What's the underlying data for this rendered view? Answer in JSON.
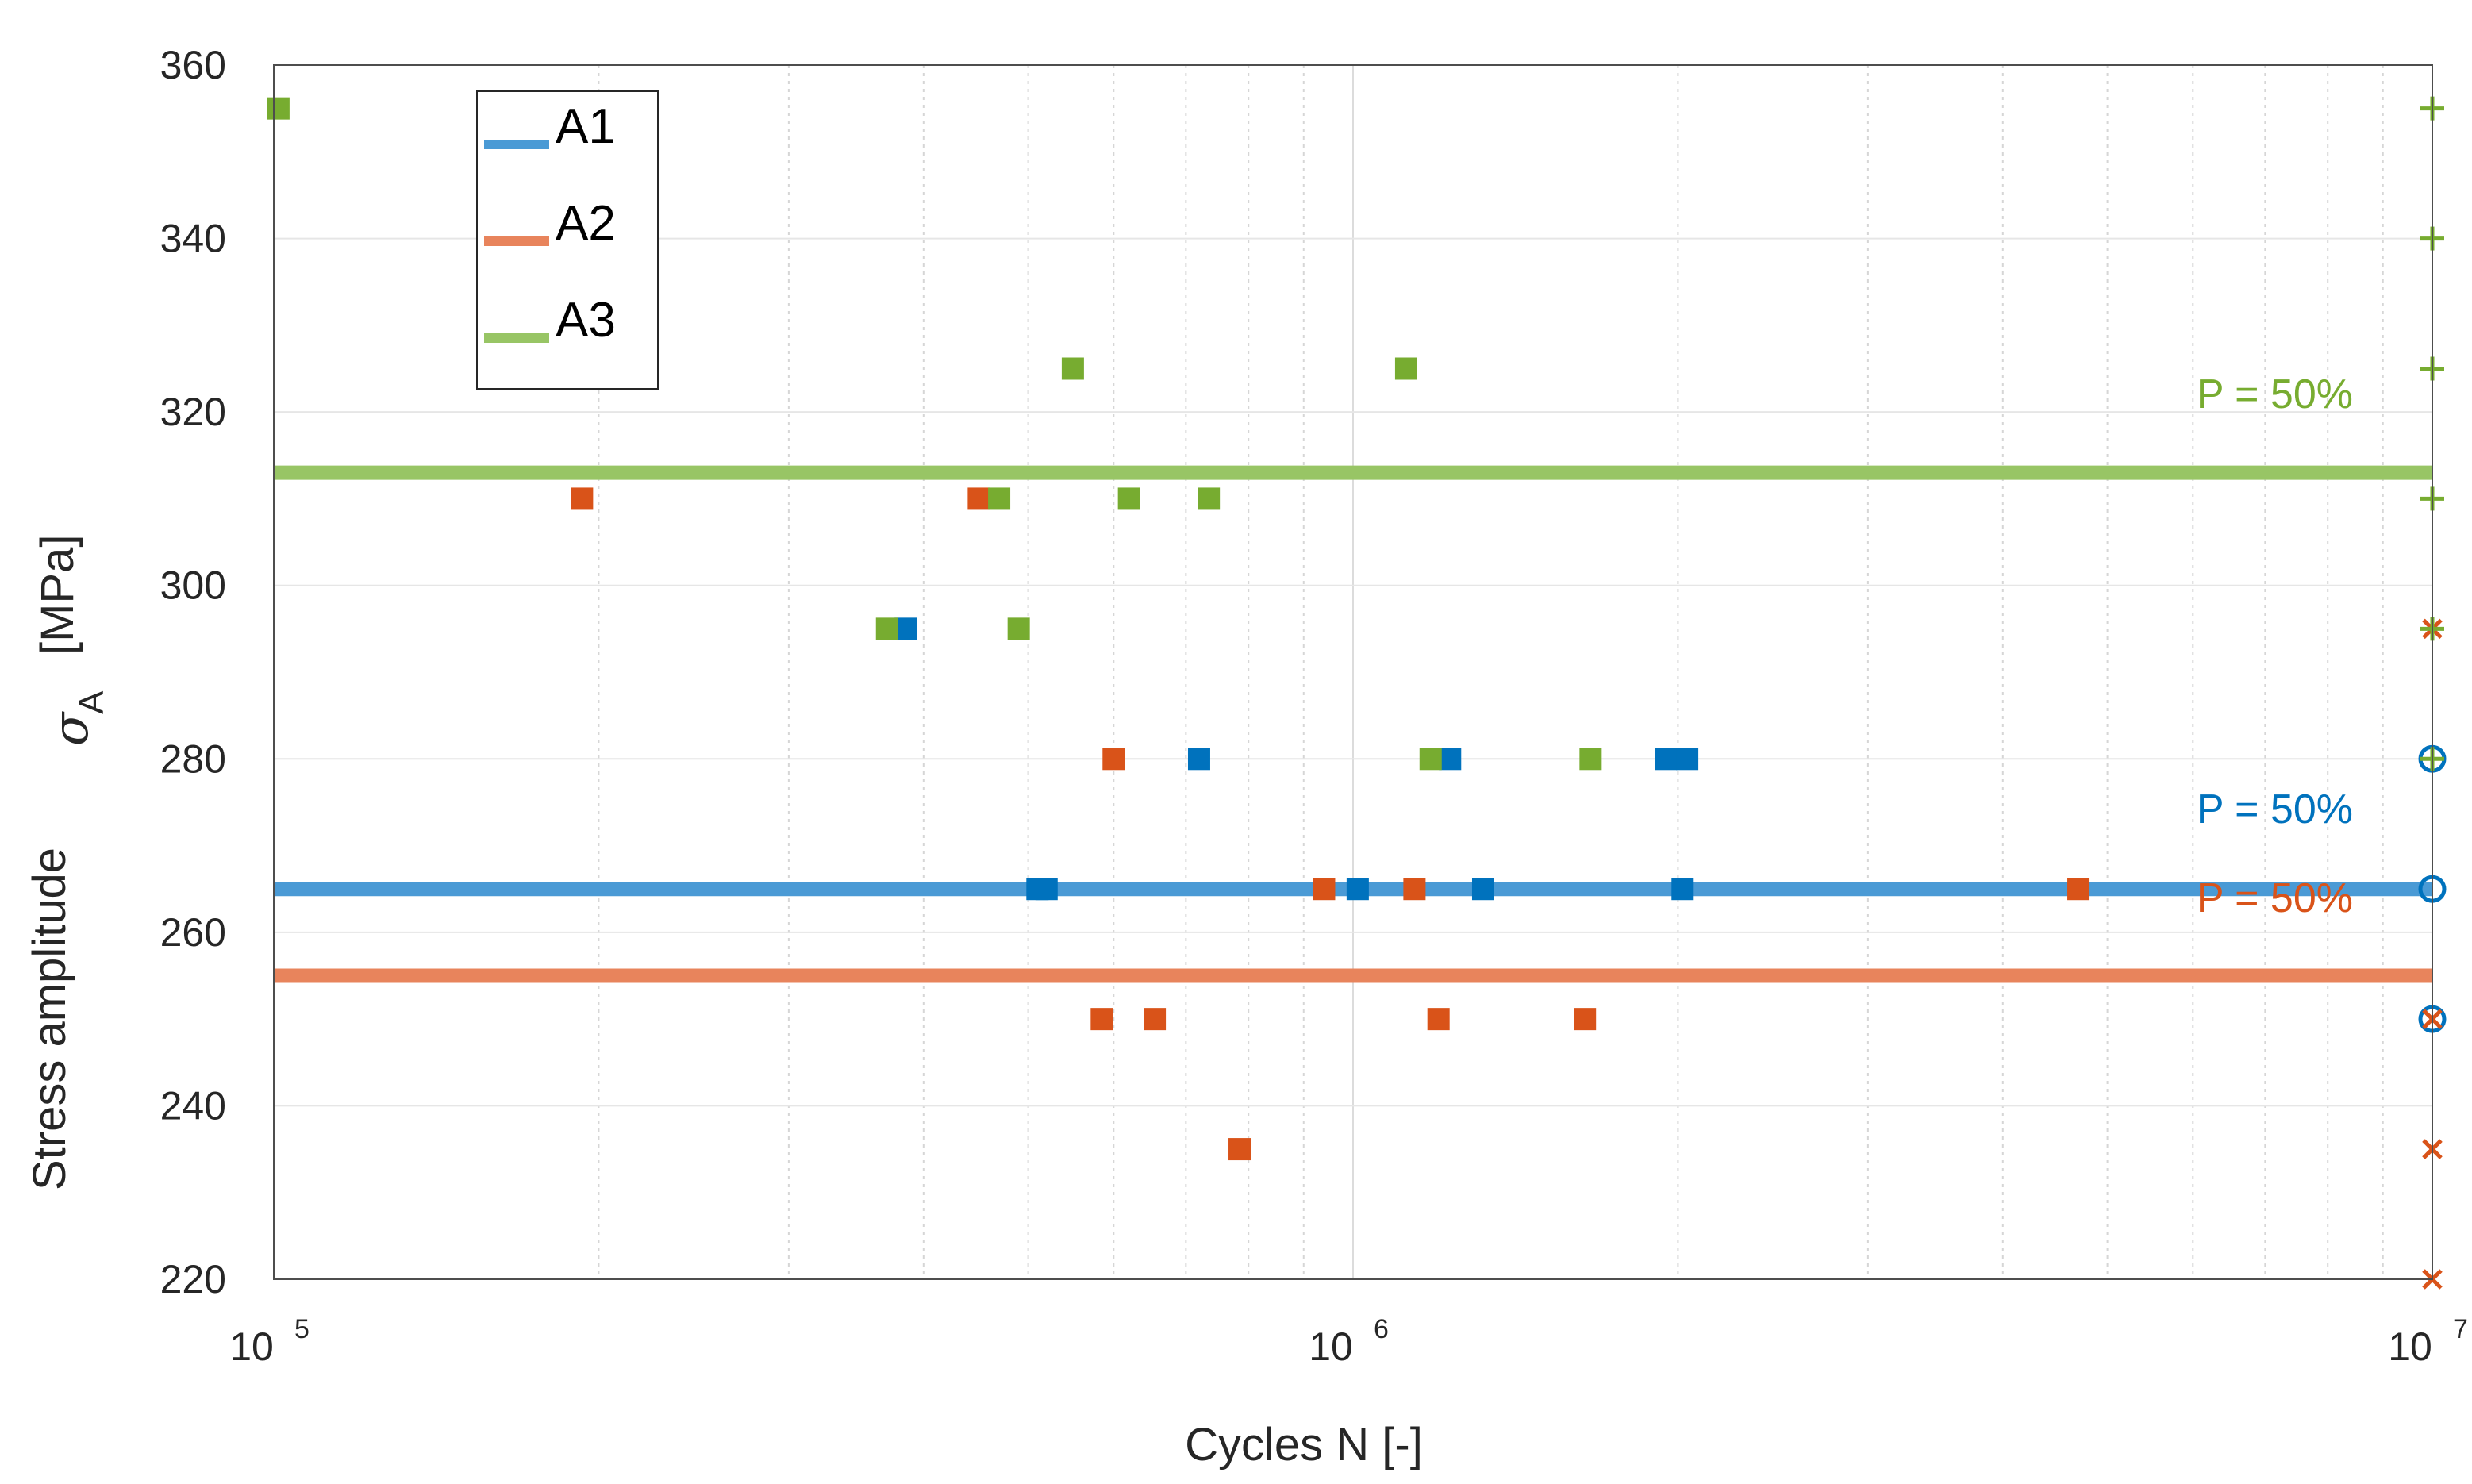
{
  "chart_data": {
    "type": "scatter",
    "xlabel": "Cycles N [-]",
    "ylabel": "Stress amplitude",
    "ylabel_symbol": "σ",
    "ylabel_subscript": "A",
    "ylabel_unit": "[MPa]",
    "xscale": "log",
    "xlim": [
      100000,
      10000000
    ],
    "ylim": [
      220,
      360
    ],
    "x_ticks": [
      {
        "base": "10",
        "exp": "5",
        "value": 100000
      },
      {
        "base": "10",
        "exp": "6",
        "value": 1000000
      },
      {
        "base": "10",
        "exp": "7",
        "value": 10000000
      }
    ],
    "y_ticks": [
      "220",
      "240",
      "260",
      "280",
      "300",
      "320",
      "340",
      "360"
    ],
    "grid": true,
    "legend_position": "top-left",
    "series": [
      {
        "name": "A1",
        "color": "#0072BD",
        "line_color": "#4A9AD5",
        "p50_value": 265,
        "p50_label": "P = 50%",
        "failures": [
          [
            385000,
            295
          ],
          [
            510000,
            265
          ],
          [
            520000,
            265
          ],
          [
            720000,
            280
          ],
          [
            1010000,
            265
          ],
          [
            1230000,
            280
          ],
          [
            1320000,
            265
          ],
          [
            1950000,
            280
          ],
          [
            2020000,
            265
          ],
          [
            2040000,
            280
          ]
        ],
        "runouts": [
          [
            10000000,
            280
          ],
          [
            10000000,
            265
          ],
          [
            10000000,
            250
          ]
        ]
      },
      {
        "name": "A2",
        "color": "#D95319",
        "line_color": "#E8845C",
        "p50_value": 255,
        "p50_label": "P = 50%",
        "failures": [
          [
            193000,
            310
          ],
          [
            450000,
            310
          ],
          [
            585000,
            250
          ],
          [
            600000,
            280
          ],
          [
            655000,
            250
          ],
          [
            785000,
            235
          ],
          [
            940000,
            265
          ],
          [
            1140000,
            265
          ],
          [
            1200000,
            250
          ],
          [
            1640000,
            250
          ],
          [
            4700000,
            265
          ]
        ],
        "runouts": [
          [
            10000000,
            295
          ],
          [
            10000000,
            250
          ],
          [
            10000000,
            235
          ],
          [
            10000000,
            220
          ]
        ]
      },
      {
        "name": "A3",
        "color": "#77AC30",
        "line_color": "#98C565",
        "p50_value": 313,
        "p50_label": "P = 50%",
        "failures": [
          [
            101000,
            355
          ],
          [
            470000,
            310
          ],
          [
            490000,
            295
          ],
          [
            550000,
            325
          ],
          [
            370000,
            295
          ],
          [
            620000,
            310
          ],
          [
            735000,
            310
          ],
          [
            1120000,
            325
          ],
          [
            1180000,
            280
          ],
          [
            1660000,
            280
          ]
        ],
        "runouts": [
          [
            10000000,
            355
          ],
          [
            10000000,
            340
          ],
          [
            10000000,
            325
          ],
          [
            10000000,
            310
          ],
          [
            10000000,
            295
          ],
          [
            10000000,
            280
          ]
        ]
      }
    ]
  }
}
